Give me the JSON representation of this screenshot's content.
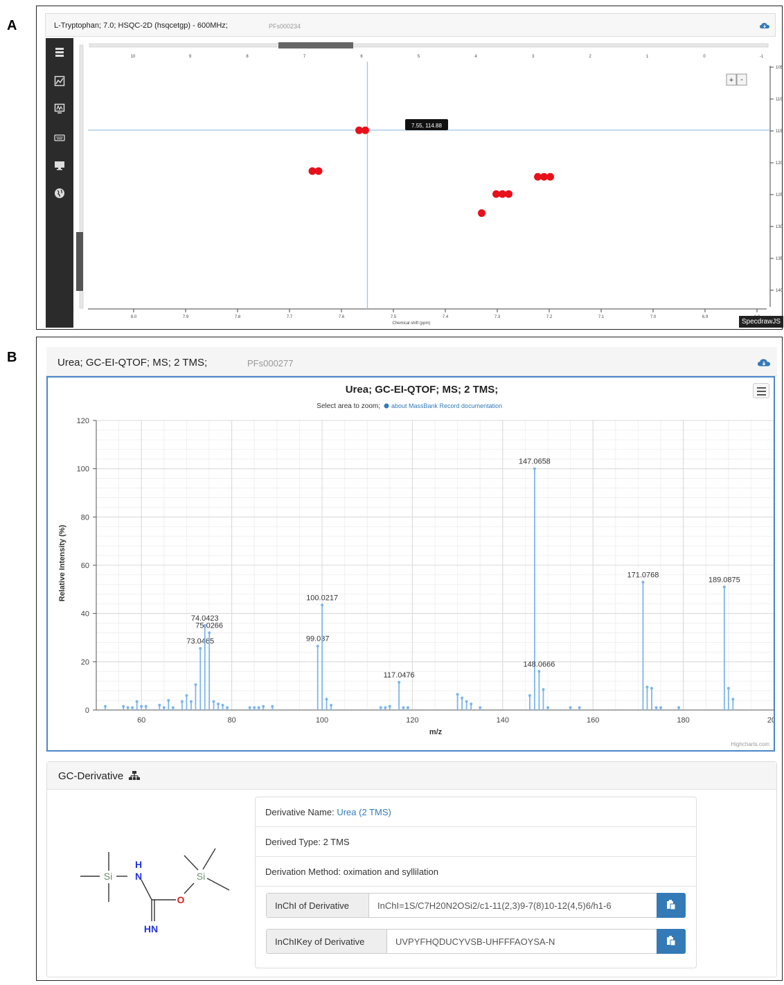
{
  "figure_labels": {
    "a": "A",
    "b": "B"
  },
  "panel_a": {
    "title": "L-Tryptophan; 7.0; HSQC-2D (hsqcetgp) - 600MHz;",
    "code": "PFs000234",
    "cursor_tooltip": "7.55, 114.88",
    "x_axis_label": "Chemical shift (ppm)",
    "x_ticks": [
      "8.0",
      "7.9",
      "7.8",
      "7.7",
      "7.6",
      "7.5",
      "7.4",
      "7.3",
      "7.2",
      "7.1",
      "7.0",
      "6.9",
      "6.8"
    ],
    "top_ticks": [
      "10",
      "9",
      "8",
      "7",
      "6",
      "5",
      "4",
      "3",
      "2",
      "1",
      "0",
      "-1"
    ],
    "y_ticks_right": [
      "105",
      "110",
      "115",
      "120",
      "125",
      "130",
      "135",
      "140"
    ],
    "zoom_plus": "+",
    "zoom_minus": "-",
    "watermark": "SpecdrawJS",
    "sidebar_icons": [
      "list-icon",
      "chart-icon",
      "peaks-icon",
      "keyboard-icon",
      "monitor-icon",
      "globe-icon"
    ],
    "cross_peaks": [
      {
        "x": 7.65,
        "y": 121.3,
        "n": 2
      },
      {
        "x": 7.56,
        "y": 114.9,
        "n": 2
      },
      {
        "x": 7.29,
        "y": 124.9,
        "n": 3
      },
      {
        "x": 7.21,
        "y": 122.2,
        "n": 3
      },
      {
        "x": 7.33,
        "y": 127.9,
        "n": 1
      }
    ]
  },
  "panel_b": {
    "title": "Urea; GC-EI-QTOF; MS; 2 TMS;",
    "code": "PFs000277",
    "colors": {
      "accent": "#4a86c8",
      "stem": "#7cb5ec",
      "link": "#337ab7"
    },
    "chart_subtitle_prefix": "Select area to zoom;",
    "chart_subtitle_link": "about MassBank Record documentation",
    "credits": "Highcharts.com",
    "derivative": {
      "heading": "GC-Derivative",
      "name_label": "Derivative Name:",
      "name_value": "Urea (2 TMS)",
      "derived_type": "Derived Type: 2 TMS",
      "method": "Derivation Method: oximation and syllilation",
      "inchi_label": "InChI of Derivative",
      "inchi_value": "InChI=1S/C7H20N2OSi2/c1-11(2,3)9-7(8)10-12(4,5)6/h1-6",
      "inchikey_label": "InChIKey of Derivative",
      "inchikey_value": "UVPYFHQDUCYVSB-UHFFFAOYSA-N",
      "structure_labels": {
        "si1": "Si",
        "nh_h": "H",
        "nh_n": "N",
        "si2": "Si",
        "o": "O",
        "hn": "HN"
      }
    }
  },
  "chart_data": {
    "type": "bar",
    "title": "Urea; GC-EI-QTOF; MS; 2 TMS;",
    "xlabel": "m/z",
    "ylabel": "Relative Intensity (%)",
    "xlim": [
      50,
      200
    ],
    "ylim": [
      0,
      120
    ],
    "x_ticks": [
      60,
      80,
      100,
      120,
      140,
      160,
      180,
      200
    ],
    "y_ticks": [
      0,
      20,
      40,
      60,
      80,
      100,
      120
    ],
    "grid": true,
    "peaks": [
      {
        "mz": 52,
        "i": 1.5
      },
      {
        "mz": 56,
        "i": 1.5
      },
      {
        "mz": 57,
        "i": 1
      },
      {
        "mz": 58,
        "i": 1
      },
      {
        "mz": 59,
        "i": 3.5
      },
      {
        "mz": 60,
        "i": 1.5
      },
      {
        "mz": 61,
        "i": 1.5
      },
      {
        "mz": 64,
        "i": 2
      },
      {
        "mz": 65,
        "i": 1
      },
      {
        "mz": 66,
        "i": 4
      },
      {
        "mz": 67,
        "i": 1
      },
      {
        "mz": 69,
        "i": 3.5
      },
      {
        "mz": 70,
        "i": 6
      },
      {
        "mz": 71,
        "i": 3.5
      },
      {
        "mz": 72,
        "i": 10.5
      },
      {
        "mz": 73.0465,
        "i": 25.5,
        "label": "73.0465"
      },
      {
        "mz": 74.0423,
        "i": 35,
        "label": "74.0423"
      },
      {
        "mz": 75.0266,
        "i": 32,
        "label": "75.0266"
      },
      {
        "mz": 76,
        "i": 3.5
      },
      {
        "mz": 77,
        "i": 2.5
      },
      {
        "mz": 78,
        "i": 2
      },
      {
        "mz": 79,
        "i": 1
      },
      {
        "mz": 84,
        "i": 1
      },
      {
        "mz": 85,
        "i": 1
      },
      {
        "mz": 86,
        "i": 1
      },
      {
        "mz": 87,
        "i": 1.5
      },
      {
        "mz": 89,
        "i": 1.5
      },
      {
        "mz": 99.037,
        "i": 26.5,
        "label": "99.037"
      },
      {
        "mz": 100.0217,
        "i": 43.5,
        "label": "100.0217"
      },
      {
        "mz": 101,
        "i": 4.5
      },
      {
        "mz": 102,
        "i": 2
      },
      {
        "mz": 113,
        "i": 1
      },
      {
        "mz": 114,
        "i": 1
      },
      {
        "mz": 115,
        "i": 1.5
      },
      {
        "mz": 117.0476,
        "i": 11.5,
        "label": "117.0476"
      },
      {
        "mz": 118,
        "i": 1
      },
      {
        "mz": 119,
        "i": 1
      },
      {
        "mz": 130,
        "i": 6.5
      },
      {
        "mz": 131,
        "i": 5
      },
      {
        "mz": 132,
        "i": 3.5
      },
      {
        "mz": 133,
        "i": 2.5
      },
      {
        "mz": 135,
        "i": 1
      },
      {
        "mz": 146,
        "i": 6
      },
      {
        "mz": 147.0658,
        "i": 100,
        "label": "147.0658"
      },
      {
        "mz": 148.0666,
        "i": 16,
        "label": "148.0666"
      },
      {
        "mz": 149,
        "i": 8.5
      },
      {
        "mz": 150,
        "i": 1
      },
      {
        "mz": 155,
        "i": 1
      },
      {
        "mz": 157,
        "i": 1
      },
      {
        "mz": 171.0768,
        "i": 53,
        "label": "171.0768"
      },
      {
        "mz": 172,
        "i": 9.5
      },
      {
        "mz": 173,
        "i": 9
      },
      {
        "mz": 174,
        "i": 1
      },
      {
        "mz": 175,
        "i": 1
      },
      {
        "mz": 179,
        "i": 1
      },
      {
        "mz": 189.0875,
        "i": 51,
        "label": "189.0875"
      },
      {
        "mz": 190,
        "i": 9
      },
      {
        "mz": 191,
        "i": 4.5
      }
    ]
  }
}
